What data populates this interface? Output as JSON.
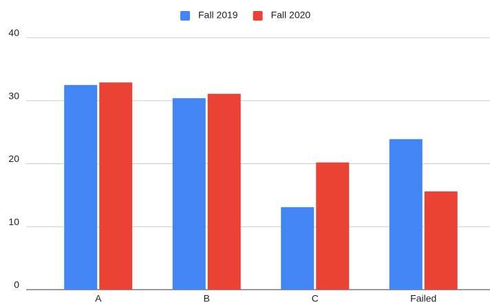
{
  "chart_data": {
    "type": "bar",
    "categories": [
      "A",
      "B",
      "C",
      "Failed"
    ],
    "series": [
      {
        "name": "Fall 2019",
        "color": "#4285f4",
        "values": [
          32.5,
          30.4,
          13.1,
          23.9
        ]
      },
      {
        "name": "Fall 2020",
        "color": "#ea4335",
        "values": [
          32.9,
          31.1,
          20.2,
          15.6
        ]
      }
    ],
    "ylim": [
      0,
      40
    ],
    "yticks": [
      0,
      10,
      20,
      30,
      40
    ],
    "grid": true,
    "legend": "top"
  }
}
